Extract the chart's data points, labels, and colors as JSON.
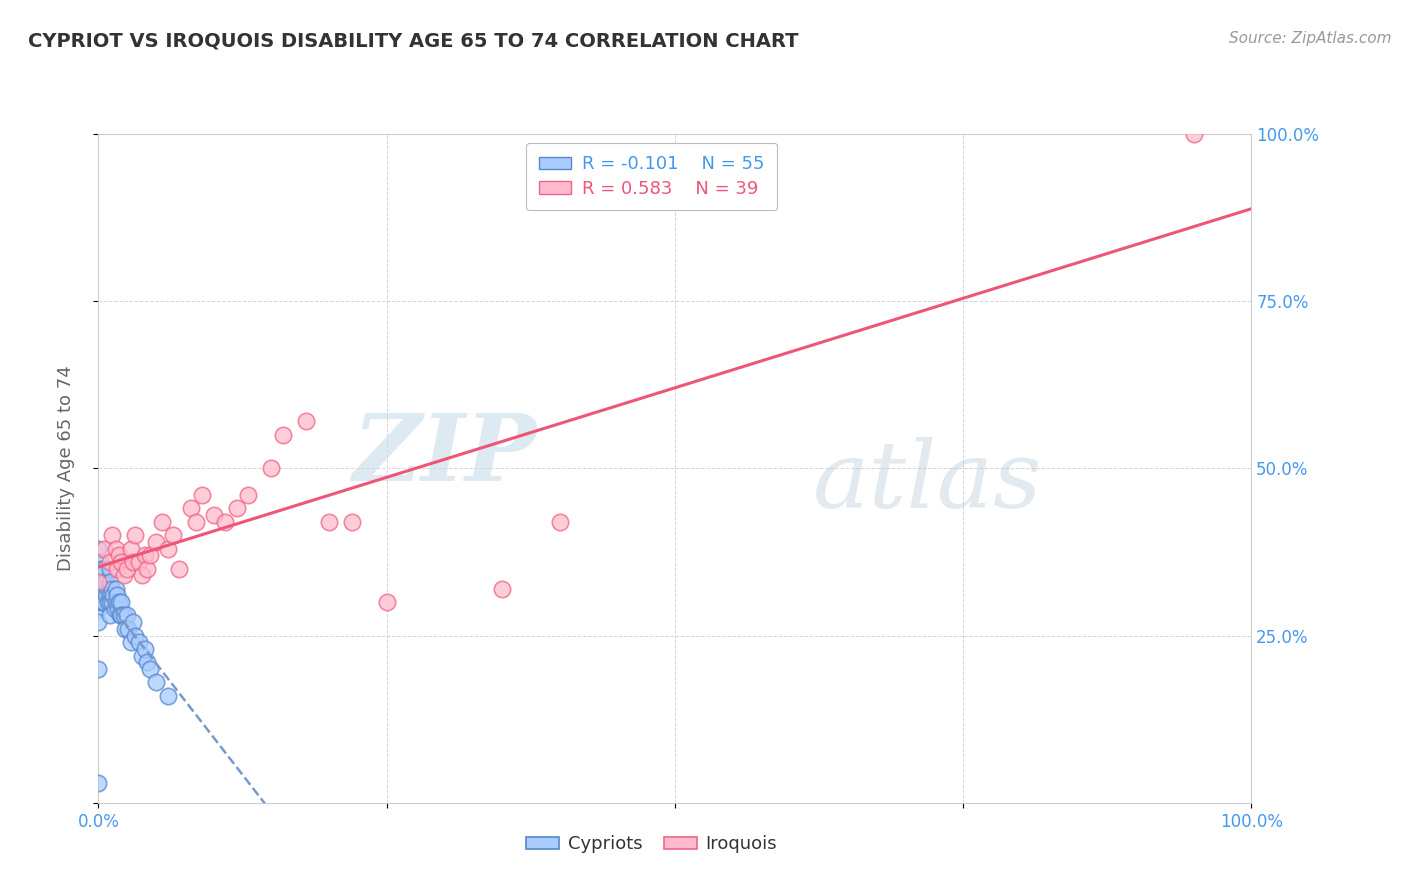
{
  "title": "CYPRIOT VS IROQUOIS DISABILITY AGE 65 TO 74 CORRELATION CHART",
  "source": "Source: ZipAtlas.com",
  "ylabel": "Disability Age 65 to 74",
  "cypriot_R": -0.101,
  "cypriot_N": 55,
  "iroquois_R": 0.583,
  "iroquois_N": 39,
  "cypriot_fill": "#aaccff",
  "cypriot_edge": "#5588cc",
  "iroquois_fill": "#ffbbcc",
  "iroquois_edge": "#ee6688",
  "cypriot_line_color": "#7799cc",
  "iroquois_line_color": "#ee5577",
  "watermark_zip": "ZIP",
  "watermark_atlas": "atlas",
  "xlim": [
    0.0,
    1.0
  ],
  "ylim": [
    0.0,
    1.0
  ],
  "cypriot_x": [
    0.0,
    0.0,
    0.0,
    0.0,
    0.0,
    0.001,
    0.001,
    0.001,
    0.002,
    0.002,
    0.002,
    0.003,
    0.003,
    0.004,
    0.004,
    0.005,
    0.005,
    0.005,
    0.006,
    0.007,
    0.007,
    0.008,
    0.009,
    0.01,
    0.01,
    0.01,
    0.01,
    0.01,
    0.012,
    0.012,
    0.013,
    0.014,
    0.015,
    0.015,
    0.016,
    0.017,
    0.018,
    0.019,
    0.02,
    0.02,
    0.022,
    0.023,
    0.025,
    0.026,
    0.028,
    0.03,
    0.032,
    0.035,
    0.038,
    0.04,
    0.042,
    0.045,
    0.05,
    0.06,
    0.0
  ],
  "cypriot_y": [
    0.38,
    0.33,
    0.29,
    0.27,
    0.2,
    0.36,
    0.34,
    0.31,
    0.35,
    0.33,
    0.3,
    0.32,
    0.3,
    0.34,
    0.31,
    0.35,
    0.33,
    0.3,
    0.32,
    0.33,
    0.31,
    0.3,
    0.32,
    0.35,
    0.33,
    0.31,
    0.3,
    0.28,
    0.32,
    0.3,
    0.31,
    0.29,
    0.32,
    0.3,
    0.31,
    0.29,
    0.3,
    0.28,
    0.3,
    0.28,
    0.28,
    0.26,
    0.28,
    0.26,
    0.24,
    0.27,
    0.25,
    0.24,
    0.22,
    0.23,
    0.21,
    0.2,
    0.18,
    0.16,
    0.03
  ],
  "iroquois_x": [
    0.0,
    0.005,
    0.01,
    0.012,
    0.015,
    0.016,
    0.018,
    0.02,
    0.022,
    0.025,
    0.028,
    0.03,
    0.032,
    0.035,
    0.038,
    0.04,
    0.042,
    0.045,
    0.05,
    0.055,
    0.06,
    0.065,
    0.07,
    0.08,
    0.085,
    0.09,
    0.1,
    0.11,
    0.12,
    0.13,
    0.15,
    0.16,
    0.18,
    0.2,
    0.22,
    0.25,
    0.35,
    0.4,
    0.95
  ],
  "iroquois_y": [
    0.33,
    0.38,
    0.36,
    0.4,
    0.38,
    0.35,
    0.37,
    0.36,
    0.34,
    0.35,
    0.38,
    0.36,
    0.4,
    0.36,
    0.34,
    0.37,
    0.35,
    0.37,
    0.39,
    0.42,
    0.38,
    0.4,
    0.35,
    0.44,
    0.42,
    0.46,
    0.43,
    0.42,
    0.44,
    0.46,
    0.5,
    0.55,
    0.57,
    0.42,
    0.42,
    0.3,
    0.32,
    0.42,
    1.0
  ]
}
